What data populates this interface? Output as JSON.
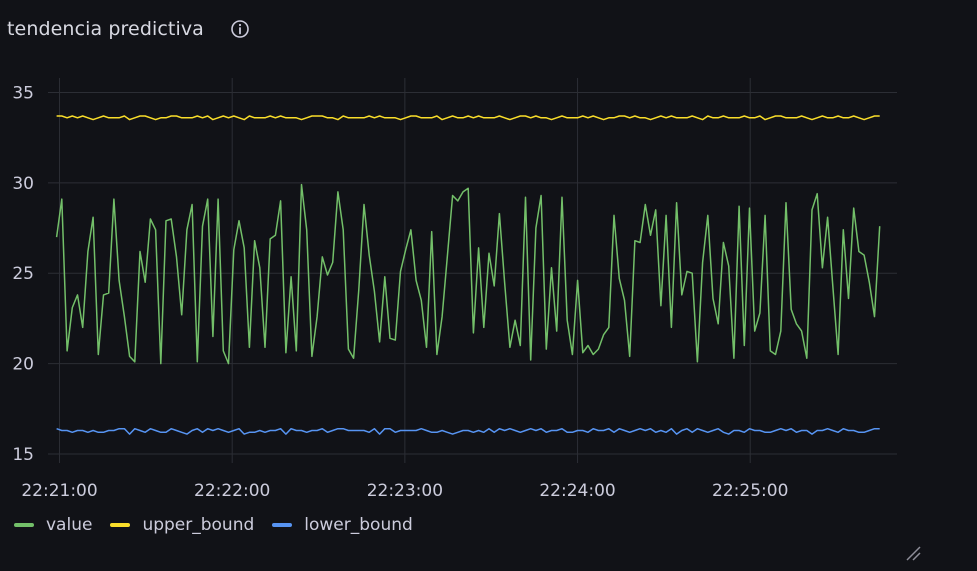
{
  "panel": {
    "title": "tendencia predictiva",
    "info_icon": "info-icon",
    "resize_icon": "resize-handle-icon"
  },
  "colors": {
    "value": "#73bf69",
    "upper_bound": "#fade2a",
    "lower_bound": "#5794f2",
    "grid": "#2c2e35",
    "background": "#111217"
  },
  "chart_data": {
    "type": "line",
    "title": "",
    "xlabel": "",
    "ylabel": "",
    "x_tick_labels": [
      "22:21:00",
      "22:22:00",
      "22:23:00",
      "22:24:00",
      "22:25:00"
    ],
    "x_tick_seconds": [
      0,
      60,
      120,
      180,
      240
    ],
    "y_ticks": [
      15,
      20,
      25,
      30,
      35
    ],
    "ylim": [
      14.5,
      35.8
    ],
    "xlim_seconds": [
      -4,
      291
    ],
    "grid": true,
    "legend_position": "bottom-left",
    "series": [
      {
        "name": "value",
        "color": "#73bf69",
        "values": [
          27.0,
          29.1,
          20.7,
          23.1,
          23.8,
          22.0,
          26.2,
          28.1,
          20.5,
          23.8,
          23.9,
          29.1,
          24.6,
          22.6,
          20.4,
          20.1,
          26.2,
          24.5,
          28.0,
          27.4,
          20.0,
          27.9,
          28.0,
          25.9,
          22.7,
          27.4,
          28.8,
          20.1,
          27.6,
          29.1,
          21.5,
          29.1,
          20.7,
          20.0,
          26.3,
          27.9,
          26.4,
          20.9,
          26.8,
          25.3,
          20.9,
          26.9,
          27.1,
          29.0,
          20.6,
          24.8,
          20.7,
          29.9,
          27.4,
          20.4,
          22.6,
          25.9,
          24.9,
          25.6,
          29.5,
          27.4,
          20.8,
          20.3,
          24.1,
          28.8,
          26.0,
          24.0,
          21.2,
          24.8,
          21.4,
          21.3,
          25.1,
          26.3,
          27.4,
          24.6,
          23.5,
          20.9,
          27.3,
          20.5,
          22.6,
          25.9,
          29.3,
          29.0,
          29.5,
          29.7,
          21.7,
          26.4,
          22.0,
          26.1,
          24.3,
          28.3,
          24.5,
          20.9,
          22.4,
          21.0,
          29.2,
          20.2,
          27.5,
          29.3,
          20.8,
          25.3,
          21.8,
          29.2,
          22.4,
          20.5,
          24.6,
          20.6,
          21.0,
          20.5,
          20.8,
          21.6,
          22.0,
          28.2,
          24.7,
          23.5,
          20.4,
          26.8,
          26.7,
          28.8,
          27.1,
          28.5,
          23.2,
          28.2,
          22.0,
          28.9,
          23.8,
          25.1,
          25.0,
          20.1,
          25.6,
          28.2,
          23.6,
          22.2,
          26.7,
          25.4,
          20.3,
          28.7,
          21.0,
          28.6,
          21.8,
          22.8,
          28.2,
          20.7,
          20.5,
          21.8,
          28.9,
          23.0,
          22.2,
          21.8,
          20.3,
          28.5,
          29.4,
          25.3,
          28.1,
          24.3,
          20.5,
          27.4,
          23.6,
          28.6,
          26.2,
          26.0,
          24.5,
          22.6,
          27.6
        ]
      },
      {
        "name": "upper_bound",
        "color": "#fade2a",
        "values": [
          33.7,
          33.7,
          33.6,
          33.7,
          33.6,
          33.7,
          33.6,
          33.5,
          33.6,
          33.7,
          33.6,
          33.6,
          33.6,
          33.7,
          33.5,
          33.6,
          33.7,
          33.7,
          33.6,
          33.5,
          33.6,
          33.6,
          33.7,
          33.7,
          33.6,
          33.6,
          33.6,
          33.7,
          33.6,
          33.7,
          33.5,
          33.6,
          33.7,
          33.6,
          33.7,
          33.6,
          33.5,
          33.7,
          33.6,
          33.6,
          33.6,
          33.7,
          33.6,
          33.7,
          33.6,
          33.6,
          33.6,
          33.5,
          33.6,
          33.7,
          33.7,
          33.7,
          33.6,
          33.6,
          33.5,
          33.7,
          33.6,
          33.6,
          33.6,
          33.6,
          33.7,
          33.6,
          33.7,
          33.6,
          33.6,
          33.6,
          33.5,
          33.6,
          33.7,
          33.7,
          33.6,
          33.6,
          33.6,
          33.7,
          33.5,
          33.6,
          33.7,
          33.6,
          33.6,
          33.7,
          33.6,
          33.7,
          33.6,
          33.6,
          33.6,
          33.7,
          33.6,
          33.5,
          33.6,
          33.7,
          33.7,
          33.6,
          33.7,
          33.6,
          33.6,
          33.5,
          33.6,
          33.7,
          33.6,
          33.6,
          33.6,
          33.7,
          33.6,
          33.7,
          33.6,
          33.5,
          33.6,
          33.6,
          33.7,
          33.7,
          33.6,
          33.7,
          33.6,
          33.6,
          33.5,
          33.6,
          33.7,
          33.6,
          33.7,
          33.6,
          33.6,
          33.6,
          33.7,
          33.6,
          33.5,
          33.7,
          33.6,
          33.6,
          33.7,
          33.6,
          33.6,
          33.6,
          33.7,
          33.6,
          33.6,
          33.7,
          33.5,
          33.6,
          33.7,
          33.7,
          33.6,
          33.6,
          33.6,
          33.7,
          33.6,
          33.5,
          33.6,
          33.7,
          33.6,
          33.6,
          33.7,
          33.6,
          33.6,
          33.7,
          33.6,
          33.5,
          33.6,
          33.7,
          33.7
        ]
      },
      {
        "name": "lower_bound",
        "color": "#5794f2",
        "values": [
          16.4,
          16.3,
          16.3,
          16.2,
          16.3,
          16.3,
          16.2,
          16.3,
          16.2,
          16.2,
          16.3,
          16.3,
          16.4,
          16.4,
          16.1,
          16.4,
          16.3,
          16.2,
          16.4,
          16.3,
          16.2,
          16.2,
          16.4,
          16.3,
          16.2,
          16.1,
          16.3,
          16.4,
          16.2,
          16.4,
          16.3,
          16.4,
          16.3,
          16.2,
          16.3,
          16.4,
          16.1,
          16.2,
          16.2,
          16.3,
          16.2,
          16.3,
          16.3,
          16.4,
          16.1,
          16.4,
          16.3,
          16.3,
          16.2,
          16.3,
          16.3,
          16.4,
          16.2,
          16.3,
          16.4,
          16.4,
          16.3,
          16.3,
          16.3,
          16.3,
          16.2,
          16.4,
          16.1,
          16.4,
          16.4,
          16.2,
          16.3,
          16.3,
          16.3,
          16.3,
          16.4,
          16.3,
          16.2,
          16.2,
          16.3,
          16.2,
          16.1,
          16.2,
          16.3,
          16.3,
          16.2,
          16.3,
          16.2,
          16.4,
          16.2,
          16.4,
          16.3,
          16.4,
          16.3,
          16.2,
          16.3,
          16.4,
          16.3,
          16.4,
          16.2,
          16.3,
          16.3,
          16.4,
          16.2,
          16.2,
          16.3,
          16.3,
          16.2,
          16.4,
          16.3,
          16.3,
          16.4,
          16.2,
          16.4,
          16.3,
          16.2,
          16.3,
          16.4,
          16.3,
          16.4,
          16.2,
          16.3,
          16.2,
          16.4,
          16.1,
          16.3,
          16.4,
          16.2,
          16.4,
          16.3,
          16.2,
          16.3,
          16.4,
          16.2,
          16.1,
          16.3,
          16.3,
          16.2,
          16.4,
          16.3,
          16.3,
          16.2,
          16.2,
          16.3,
          16.4,
          16.3,
          16.4,
          16.2,
          16.3,
          16.3,
          16.1,
          16.3,
          16.3,
          16.4,
          16.3,
          16.2,
          16.4,
          16.3,
          16.3,
          16.2,
          16.2,
          16.3,
          16.4,
          16.4
        ]
      }
    ],
    "x_start_seconds": -1.0,
    "x_end_seconds": 285.0
  }
}
